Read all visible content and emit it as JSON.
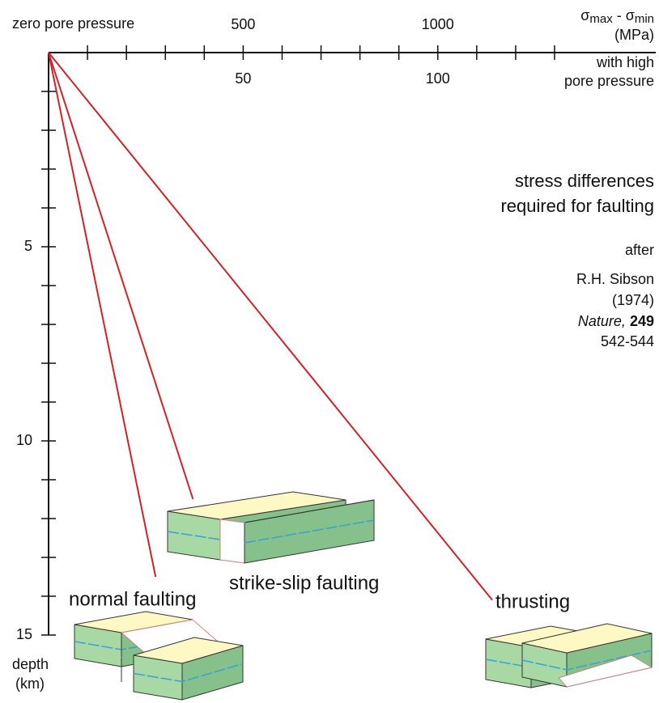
{
  "chart_data": {
    "type": "line",
    "x_label": [
      "σ",
      "max",
      " - σ",
      "min"
    ],
    "x_unit": "(MPa)",
    "x_note": "zero pore pressure",
    "x2_note": [
      "with high",
      "pore pressure"
    ],
    "xlim": [
      0,
      1560
    ],
    "xticks": [
      {
        "value": 100,
        "label": null
      },
      {
        "value": 200,
        "label": null
      },
      {
        "value": 300,
        "label": null
      },
      {
        "value": 400,
        "label": null
      },
      500,
      {
        "value": 600,
        "label": null
      },
      {
        "value": 700,
        "label": null
      },
      {
        "value": 800,
        "label": null
      },
      {
        "value": 900,
        "label": null
      },
      1000,
      {
        "value": 1100,
        "label": null
      },
      {
        "value": 1200,
        "label": null
      },
      {
        "value": 1300,
        "label": null
      }
    ],
    "x2lim": [
      0,
      156
    ],
    "x2ticks": [
      50,
      100
    ],
    "ylim": [
      0,
      15
    ],
    "y_inverted": true,
    "ylabel": [
      "depth",
      "(km)"
    ],
    "yticks": [
      {
        "value": 1,
        "label": null
      },
      {
        "value": 2,
        "label": null
      },
      {
        "value": 3,
        "label": null
      },
      {
        "value": 4,
        "label": null
      },
      5,
      {
        "value": 6,
        "label": null
      },
      {
        "value": 7,
        "label": null
      },
      {
        "value": 8,
        "label": null
      },
      {
        "value": 9,
        "label": null
      },
      10,
      {
        "value": 11,
        "label": null
      },
      {
        "value": 12,
        "label": null
      },
      {
        "value": 13,
        "label": null
      },
      {
        "value": 14,
        "label": null
      },
      15
    ],
    "series": [
      {
        "name": "normal faulting",
        "color": "#d42127",
        "x": [
          0,
          275
        ],
        "values": [
          0,
          13.5
        ]
      },
      {
        "name": "strike-slip faulting",
        "color": "#d42127",
        "x": [
          0,
          371
        ],
        "values": [
          0,
          11.5
        ]
      },
      {
        "name": "thrusting",
        "color": "#d42127",
        "x": [
          0,
          1140
        ],
        "values": [
          0,
          14.1
        ]
      }
    ],
    "annotations": [
      "stress differences",
      "required for faulting",
      "after",
      "R.H. Sibson",
      "(1974)"
    ],
    "citation": {
      "journal": "Nature,",
      "volume": "249",
      "pages": "542-544"
    }
  }
}
